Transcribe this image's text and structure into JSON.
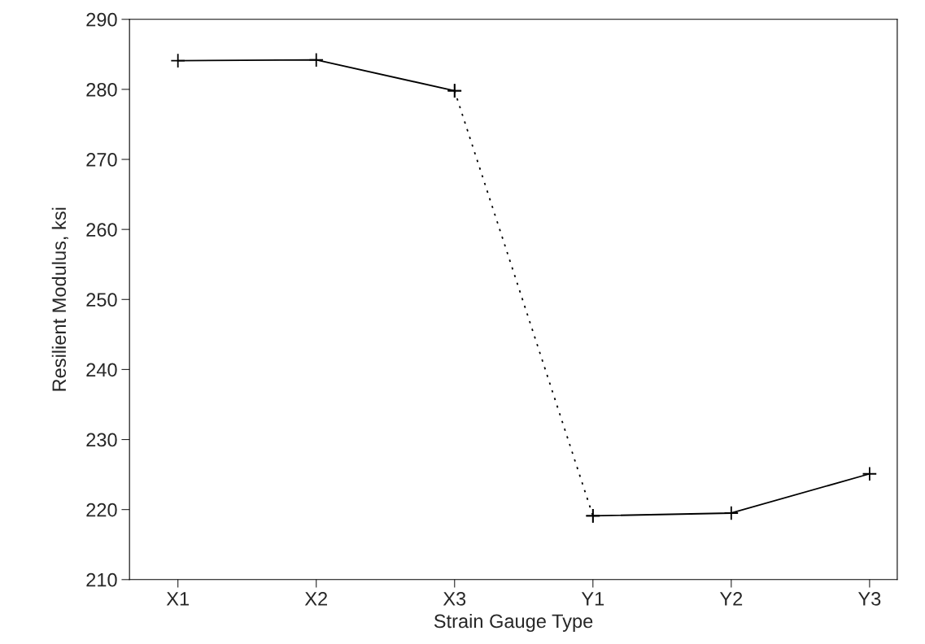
{
  "chart_data": {
    "type": "line",
    "xlabel": "Strain Gauge Type",
    "ylabel": "Resilient Modulus, ksi",
    "categories": [
      "X1",
      "X2",
      "X3",
      "Y1",
      "Y2",
      "Y3"
    ],
    "series": [
      {
        "color": "#000000",
        "line_style": "solid",
        "values": [
          284.1,
          284.2,
          279.8,
          null,
          null,
          null
        ]
      },
      {
        "color": "#000000",
        "line_style": "dotted",
        "values": [
          null,
          null,
          279.8,
          219.1,
          null,
          null
        ]
      },
      {
        "color": "#000000",
        "line_style": "solid",
        "values": [
          null,
          null,
          null,
          219.1,
          219.5,
          225.1
        ]
      }
    ],
    "marker": "cross",
    "ylim": [
      210,
      290
    ],
    "yticks": [
      210,
      220,
      230,
      240,
      250,
      260,
      270,
      280,
      290
    ],
    "grid": false
  }
}
